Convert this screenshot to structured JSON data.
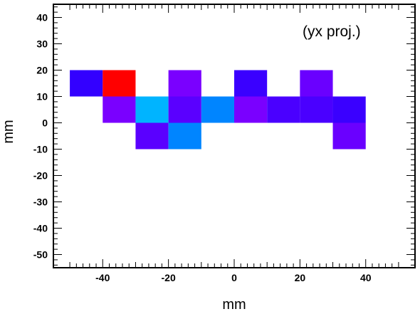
{
  "chart_data": {
    "type": "heatmap",
    "annotation": "(yx proj.)",
    "xlabel": "mm",
    "ylabel": "mm",
    "xlim": [
      -55,
      55
    ],
    "ylim": [
      -55,
      45
    ],
    "x_ticks": [
      -40,
      -20,
      0,
      20,
      40
    ],
    "y_ticks": [
      40,
      30,
      20,
      10,
      0,
      -10,
      -20,
      -30,
      -40,
      -50
    ],
    "x_tick_labels": [
      "-40",
      "-20",
      "0",
      "20",
      "40"
    ],
    "y_tick_labels": [
      "40",
      "30",
      "20",
      "10",
      "0",
      "-10",
      "-20",
      "-30",
      "-40",
      "-50"
    ],
    "cell_size": 10,
    "cells": [
      {
        "x": [
          -50,
          -40
        ],
        "y": [
          10,
          20
        ],
        "color": "#3300ff"
      },
      {
        "x": [
          -40,
          -30
        ],
        "y": [
          10,
          20
        ],
        "color": "#ff0000"
      },
      {
        "x": [
          -20,
          -10
        ],
        "y": [
          10,
          20
        ],
        "color": "#7a00ff"
      },
      {
        "x": [
          0,
          10
        ],
        "y": [
          10,
          20
        ],
        "color": "#3a00ff"
      },
      {
        "x": [
          20,
          30
        ],
        "y": [
          10,
          20
        ],
        "color": "#6a00ff"
      },
      {
        "x": [
          -40,
          -30
        ],
        "y": [
          0,
          10
        ],
        "color": "#7a00ff"
      },
      {
        "x": [
          -30,
          -20
        ],
        "y": [
          0,
          10
        ],
        "color": "#00b4ff"
      },
      {
        "x": [
          -20,
          -10
        ],
        "y": [
          0,
          10
        ],
        "color": "#5a00ff"
      },
      {
        "x": [
          -10,
          0
        ],
        "y": [
          0,
          10
        ],
        "color": "#0085ff"
      },
      {
        "x": [
          0,
          10
        ],
        "y": [
          0,
          10
        ],
        "color": "#7a00ff"
      },
      {
        "x": [
          10,
          20
        ],
        "y": [
          0,
          10
        ],
        "color": "#4a00ff"
      },
      {
        "x": [
          20,
          30
        ],
        "y": [
          0,
          10
        ],
        "color": "#4a00ff"
      },
      {
        "x": [
          30,
          40
        ],
        "y": [
          0,
          10
        ],
        "color": "#3a00ff"
      },
      {
        "x": [
          -30,
          -20
        ],
        "y": [
          -10,
          0
        ],
        "color": "#5a00ff"
      },
      {
        "x": [
          -20,
          -10
        ],
        "y": [
          -10,
          0
        ],
        "color": "#0085ff"
      },
      {
        "x": [
          30,
          40
        ],
        "y": [
          -10,
          0
        ],
        "color": "#6a00ff"
      }
    ]
  }
}
